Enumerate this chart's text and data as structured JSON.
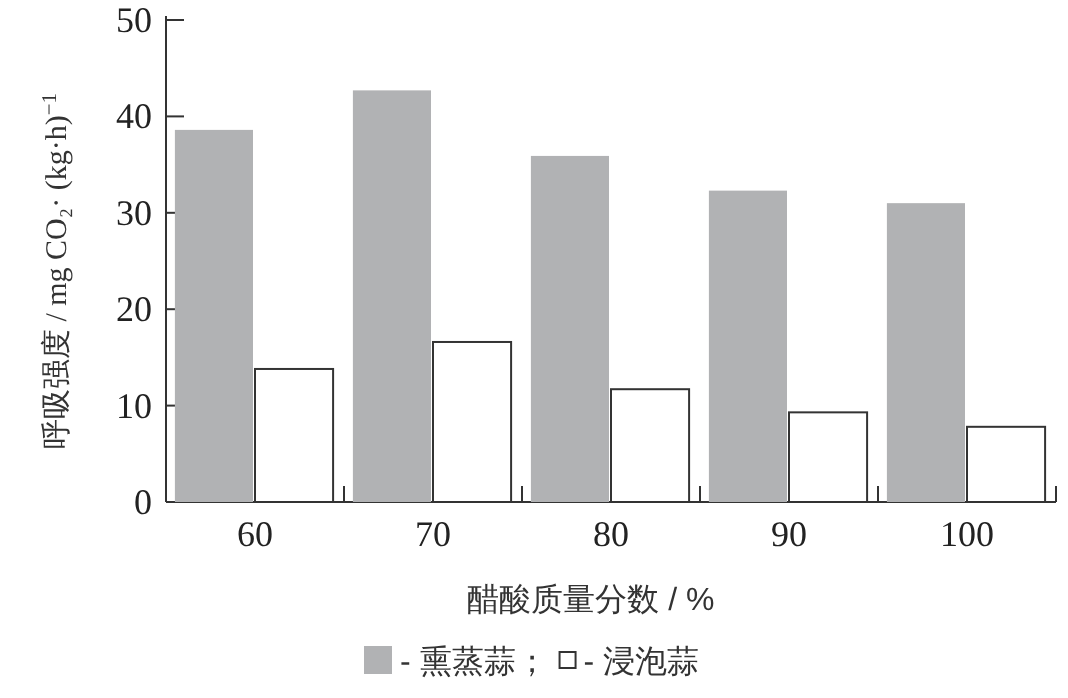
{
  "chart_data": {
    "type": "bar",
    "xlabel": "醋酸质量分数 / %",
    "ylabel": "呼吸强度 / mg CO₂· (kg·h)$^{−1}$",
    "categories": [
      "60",
      "70",
      "80",
      "90",
      "100"
    ],
    "series": [
      {
        "name": "- 熏蒸蒜；",
        "color": "#b1b2b4",
        "values": [
          38.6,
          42.7,
          35.9,
          32.3,
          31.0
        ]
      },
      {
        "name": "- 浸泡蒜",
        "color": "#ffffff",
        "values": [
          13.8,
          16.6,
          11.7,
          9.3,
          7.8
        ]
      }
    ],
    "ylim": [
      0,
      50
    ],
    "yticks": [
      0,
      10,
      20,
      30,
      40,
      50
    ],
    "grid": false,
    "legend": "bottom"
  }
}
